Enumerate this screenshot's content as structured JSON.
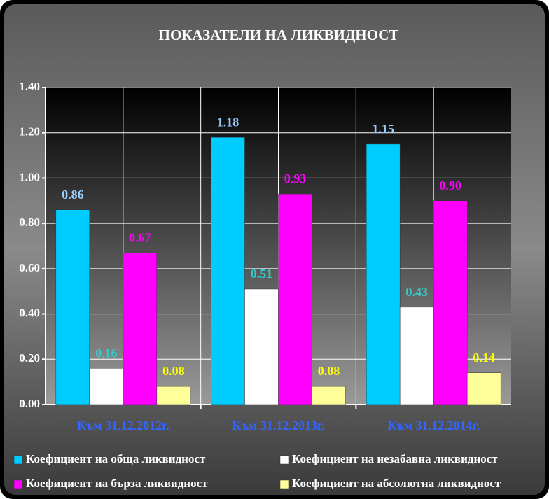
{
  "chart_data": {
    "type": "bar",
    "title": "ПОКАЗАТЕЛИ НА ЛИКВИДНОСТ",
    "categories": [
      "Към 31.12.2012г.",
      "Към 31.12.2013г.",
      "Към 31.12.2014г."
    ],
    "series": [
      {
        "name": "Коефициент на обща ликвидност",
        "color": "#00ccff",
        "label_color": "#99ccff",
        "values": [
          0.86,
          1.18,
          1.15
        ],
        "value_labels": [
          "0.86",
          "1.18",
          "1.15"
        ]
      },
      {
        "name": "Коефициент на незабавна ликвидност",
        "color": "#ffffff",
        "label_color": "#33cccc",
        "values": [
          0.16,
          0.51,
          0.43
        ],
        "value_labels": [
          "0.16",
          "0.51",
          "0.43"
        ]
      },
      {
        "name": "Коефициент на бърза ликвидност",
        "color": "#ff00ff",
        "label_color": "#ff00ff",
        "values": [
          0.67,
          0.93,
          0.9
        ],
        "value_labels": [
          "0.67",
          "0.93",
          "0.90"
        ]
      },
      {
        "name": "Коефициент на абсолютна ликвидност",
        "color": "#ffff99",
        "label_color": "#ffff00",
        "values": [
          0.08,
          0.08,
          0.14
        ],
        "value_labels": [
          "0.08",
          "0.08",
          "0.14"
        ]
      }
    ],
    "ylim": [
      0,
      1.4
    ],
    "yticks": [
      {
        "value": 0,
        "label": "0.00"
      },
      {
        "value": 0.2,
        "label": "0.20"
      },
      {
        "value": 0.4,
        "label": "0.40"
      },
      {
        "value": 0.6,
        "label": "0.60"
      },
      {
        "value": 0.8,
        "label": "0.80"
      },
      {
        "value": 1.0,
        "label": "1.00"
      },
      {
        "value": 1.2,
        "label": "1.20"
      },
      {
        "value": 1.4,
        "label": "1.40"
      }
    ],
    "grid": true
  }
}
